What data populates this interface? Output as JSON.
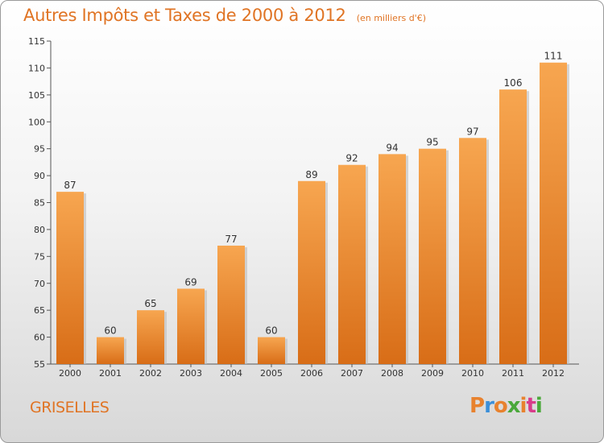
{
  "chart_data": {
    "type": "bar",
    "title": "Autres Impôts et Taxes de 2000 à 2012",
    "subtitle": "(en milliers d'€)",
    "categories": [
      "2000",
      "2001",
      "2002",
      "2003",
      "2004",
      "2005",
      "2006",
      "2007",
      "2008",
      "2009",
      "2010",
      "2011",
      "2012"
    ],
    "values": [
      87,
      60,
      65,
      69,
      77,
      60,
      89,
      92,
      94,
      95,
      97,
      106,
      111
    ],
    "ylim": [
      55,
      115
    ],
    "yticks": [
      55,
      60,
      65,
      70,
      75,
      80,
      85,
      90,
      95,
      100,
      105,
      110,
      115
    ],
    "xlabel": "",
    "ylabel": "",
    "grid": false,
    "legend": "none",
    "bar_color": "#e8822e",
    "title_color": "#e07424"
  },
  "footer": {
    "location": "GRISELLES",
    "brand": "Proxiti",
    "brand_colors": [
      "#e8822e",
      "#3b8fd9",
      "#e8822e",
      "#4aa83a",
      "#e8822e",
      "#d93b8a",
      "#4aa83a"
    ]
  }
}
